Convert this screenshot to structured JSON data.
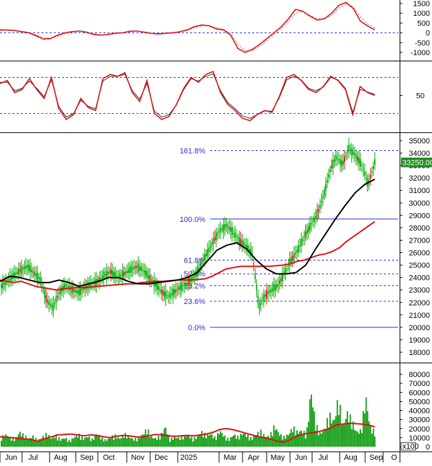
{
  "chart_data": [
    {
      "type": "line",
      "panel": "macd",
      "yticks": [
        1500,
        1000,
        500,
        0,
        -500,
        -1000
      ],
      "reference_level": 0,
      "series": [
        {
          "values": [
            150,
            140,
            120,
            60,
            0,
            -150,
            -320,
            -300,
            -120,
            0,
            60,
            90,
            30,
            -80,
            -120,
            -80,
            -20,
            0,
            80,
            90,
            30,
            -30,
            -60,
            -20,
            0,
            60,
            150,
            320,
            400,
            360,
            200,
            150,
            -120,
            -800,
            -1000,
            -850,
            -600,
            -300,
            0,
            300,
            700,
            1200,
            1100,
            850,
            650,
            720,
            1000,
            1400,
            1550,
            1250,
            600,
            350,
            150
          ]
        },
        {
          "values": [
            120,
            130,
            120,
            80,
            20,
            -100,
            -250,
            -290,
            -170,
            -40,
            40,
            80,
            50,
            -40,
            -100,
            -90,
            -40,
            -10,
            50,
            80,
            50,
            -10,
            -40,
            -30,
            -10,
            40,
            120,
            260,
            360,
            370,
            260,
            180,
            -40,
            -600,
            -900,
            -900,
            -700,
            -400,
            -100,
            200,
            550,
            1000,
            1100,
            900,
            720,
            720,
            900,
            1250,
            1450,
            1350,
            800,
            450,
            250
          ]
        }
      ],
      "colors": [
        "#dd1111",
        "#e86a6a"
      ]
    },
    {
      "type": "line",
      "panel": "oscillator",
      "yticks": [
        50
      ],
      "reference_levels": [
        80,
        20
      ],
      "series": [
        {
          "values": [
            70,
            75,
            55,
            60,
            78,
            60,
            45,
            80,
            28,
            10,
            18,
            45,
            30,
            25,
            78,
            85,
            82,
            88,
            55,
            40,
            75,
            20,
            10,
            15,
            35,
            62,
            80,
            72,
            85,
            90,
            55,
            35,
            25,
            12,
            8,
            18,
            25,
            22,
            48,
            80,
            85,
            75,
            60,
            55,
            65,
            82,
            75,
            60,
            18,
            65,
            55,
            50
          ]
        },
        {
          "values": [
            72,
            72,
            58,
            62,
            74,
            62,
            48,
            76,
            32,
            14,
            20,
            42,
            32,
            28,
            74,
            82,
            82,
            85,
            58,
            44,
            70,
            24,
            14,
            18,
            34,
            60,
            78,
            74,
            82,
            86,
            58,
            38,
            28,
            16,
            12,
            18,
            24,
            24,
            46,
            76,
            82,
            76,
            62,
            58,
            64,
            80,
            76,
            62,
            22,
            60,
            56,
            52
          ]
        }
      ],
      "colors": [
        "#dd1111",
        "#333333"
      ]
    },
    {
      "type": "candlestick",
      "panel": "price",
      "x_tick_labels": [
        "Jun",
        "Jul",
        "Aug",
        "Sep",
        "Oct",
        "Nov",
        "Dec",
        "2025",
        "Mar",
        "Apr",
        "May",
        "Jun",
        "Jul",
        "Aug",
        "Sep",
        "O"
      ],
      "yticks": [
        35000,
        34000,
        33000,
        32000,
        31000,
        30000,
        29000,
        28000,
        27000,
        26000,
        25000,
        24000,
        23000,
        22000,
        21000,
        20000,
        19000,
        18000
      ],
      "last_price_label": "33250.00",
      "fibonacci": [
        {
          "label": "161.8%",
          "value": 34200
        },
        {
          "label": "100.0%",
          "value": 28700
        },
        {
          "label": "61.8%",
          "value": 25400
        },
        {
          "label": "50.0%",
          "value": 24300
        },
        {
          "label": "38.2%",
          "value": 23350
        },
        {
          "label": "23.6%",
          "value": 22100
        },
        {
          "label": "0.0%",
          "value": 20000
        }
      ],
      "closes": [
        23300,
        23800,
        24200,
        24600,
        24900,
        24400,
        23900,
        22200,
        21600,
        22800,
        23400,
        23000,
        22800,
        23200,
        23500,
        23700,
        24200,
        24500,
        24000,
        24300,
        24600,
        24900,
        24600,
        24000,
        23400,
        22800,
        22500,
        22900,
        23300,
        23600,
        24100,
        25000,
        26000,
        27000,
        27800,
        28200,
        27600,
        27000,
        26500,
        25900,
        21600,
        22600,
        23000,
        23400,
        24400,
        25400,
        26200,
        27200,
        28200,
        29000,
        30500,
        32500,
        33700,
        33100,
        34400,
        33800,
        33000,
        31500,
        33250
      ],
      "candle_color": "#00aa00",
      "series": [
        {
          "values": [
            23800,
            23700,
            23600,
            23700,
            23500,
            23300,
            23200,
            23100,
            23000,
            23100,
            23150,
            23200,
            23200,
            23250,
            23300,
            23350,
            23400,
            23450,
            23500,
            23500,
            23600,
            23650,
            23700,
            23700,
            23750,
            23800,
            23800,
            23800,
            23850,
            23900,
            24100,
            24400,
            24700,
            24800,
            24900,
            24900,
            24900,
            24900,
            24900,
            24950,
            25000,
            25100,
            25300,
            25400,
            25600,
            25800,
            25900,
            26100,
            26400,
            26900,
            27300,
            27700,
            28100,
            28500
          ]
        },
        {
          "values": [
            23700,
            24100,
            24000,
            23800,
            23600,
            23600,
            23800,
            23600,
            23300,
            23500,
            23700,
            24000,
            24000,
            23700,
            23500,
            23500,
            23600,
            23700,
            23800,
            24000,
            24400,
            25300,
            26200,
            26600,
            26800,
            26300,
            25400,
            24700,
            24300,
            24300,
            24400,
            25000,
            26300,
            27500,
            28700,
            29800,
            30800,
            31500,
            31900
          ]
        }
      ],
      "colors": [
        "#dd1111",
        "#000000"
      ]
    },
    {
      "type": "bar",
      "panel": "volume",
      "y_unit": "x100",
      "yticks": [
        80000,
        70000,
        60000,
        50000,
        40000,
        30000,
        20000,
        10000,
        0
      ],
      "values": [
        12000,
        15000,
        11000,
        9000,
        18000,
        14000,
        10000,
        13000,
        8000,
        12000,
        16000,
        10000,
        14000,
        9000,
        11000,
        7000,
        12000,
        15000,
        10000,
        13000,
        9000,
        17000,
        11000,
        8000,
        12000,
        14000,
        10000,
        16000,
        13000,
        9000,
        11000,
        15000,
        22000,
        12000,
        10000,
        14000,
        25000,
        9000,
        12000,
        11000,
        13000,
        15000,
        10000,
        12000,
        18000,
        14000,
        16000,
        11000,
        20000,
        13000,
        9000,
        15000,
        12000,
        17000,
        14000,
        10000,
        16000,
        19000,
        12000,
        14000,
        26000,
        16000,
        12000,
        15000,
        24000,
        18000,
        20000,
        15000,
        70000,
        28000,
        16000,
        22000,
        40000,
        30000,
        60000,
        26000,
        42000,
        32000,
        18000,
        20000,
        62000,
        24000,
        18000
      ],
      "ma_values": [
        11000,
        10500,
        10000,
        9000,
        8500,
        7500,
        6000,
        9000,
        11000,
        13000,
        13500,
        14000,
        13000,
        12000,
        13000,
        12500,
        11000,
        10000,
        11500,
        12500,
        12000,
        11000,
        10500,
        12000,
        13500,
        13000,
        12000,
        11500,
        12000,
        12500,
        12000,
        13000,
        14000,
        16000,
        19000,
        20000,
        19000,
        17000,
        15000,
        13000,
        11000,
        10000,
        8000,
        6000,
        5000,
        8000,
        12000,
        14000,
        15000,
        16000,
        18000,
        20000,
        24000,
        25000,
        26000,
        25500,
        25000,
        24000,
        22000
      ]
    }
  ]
}
